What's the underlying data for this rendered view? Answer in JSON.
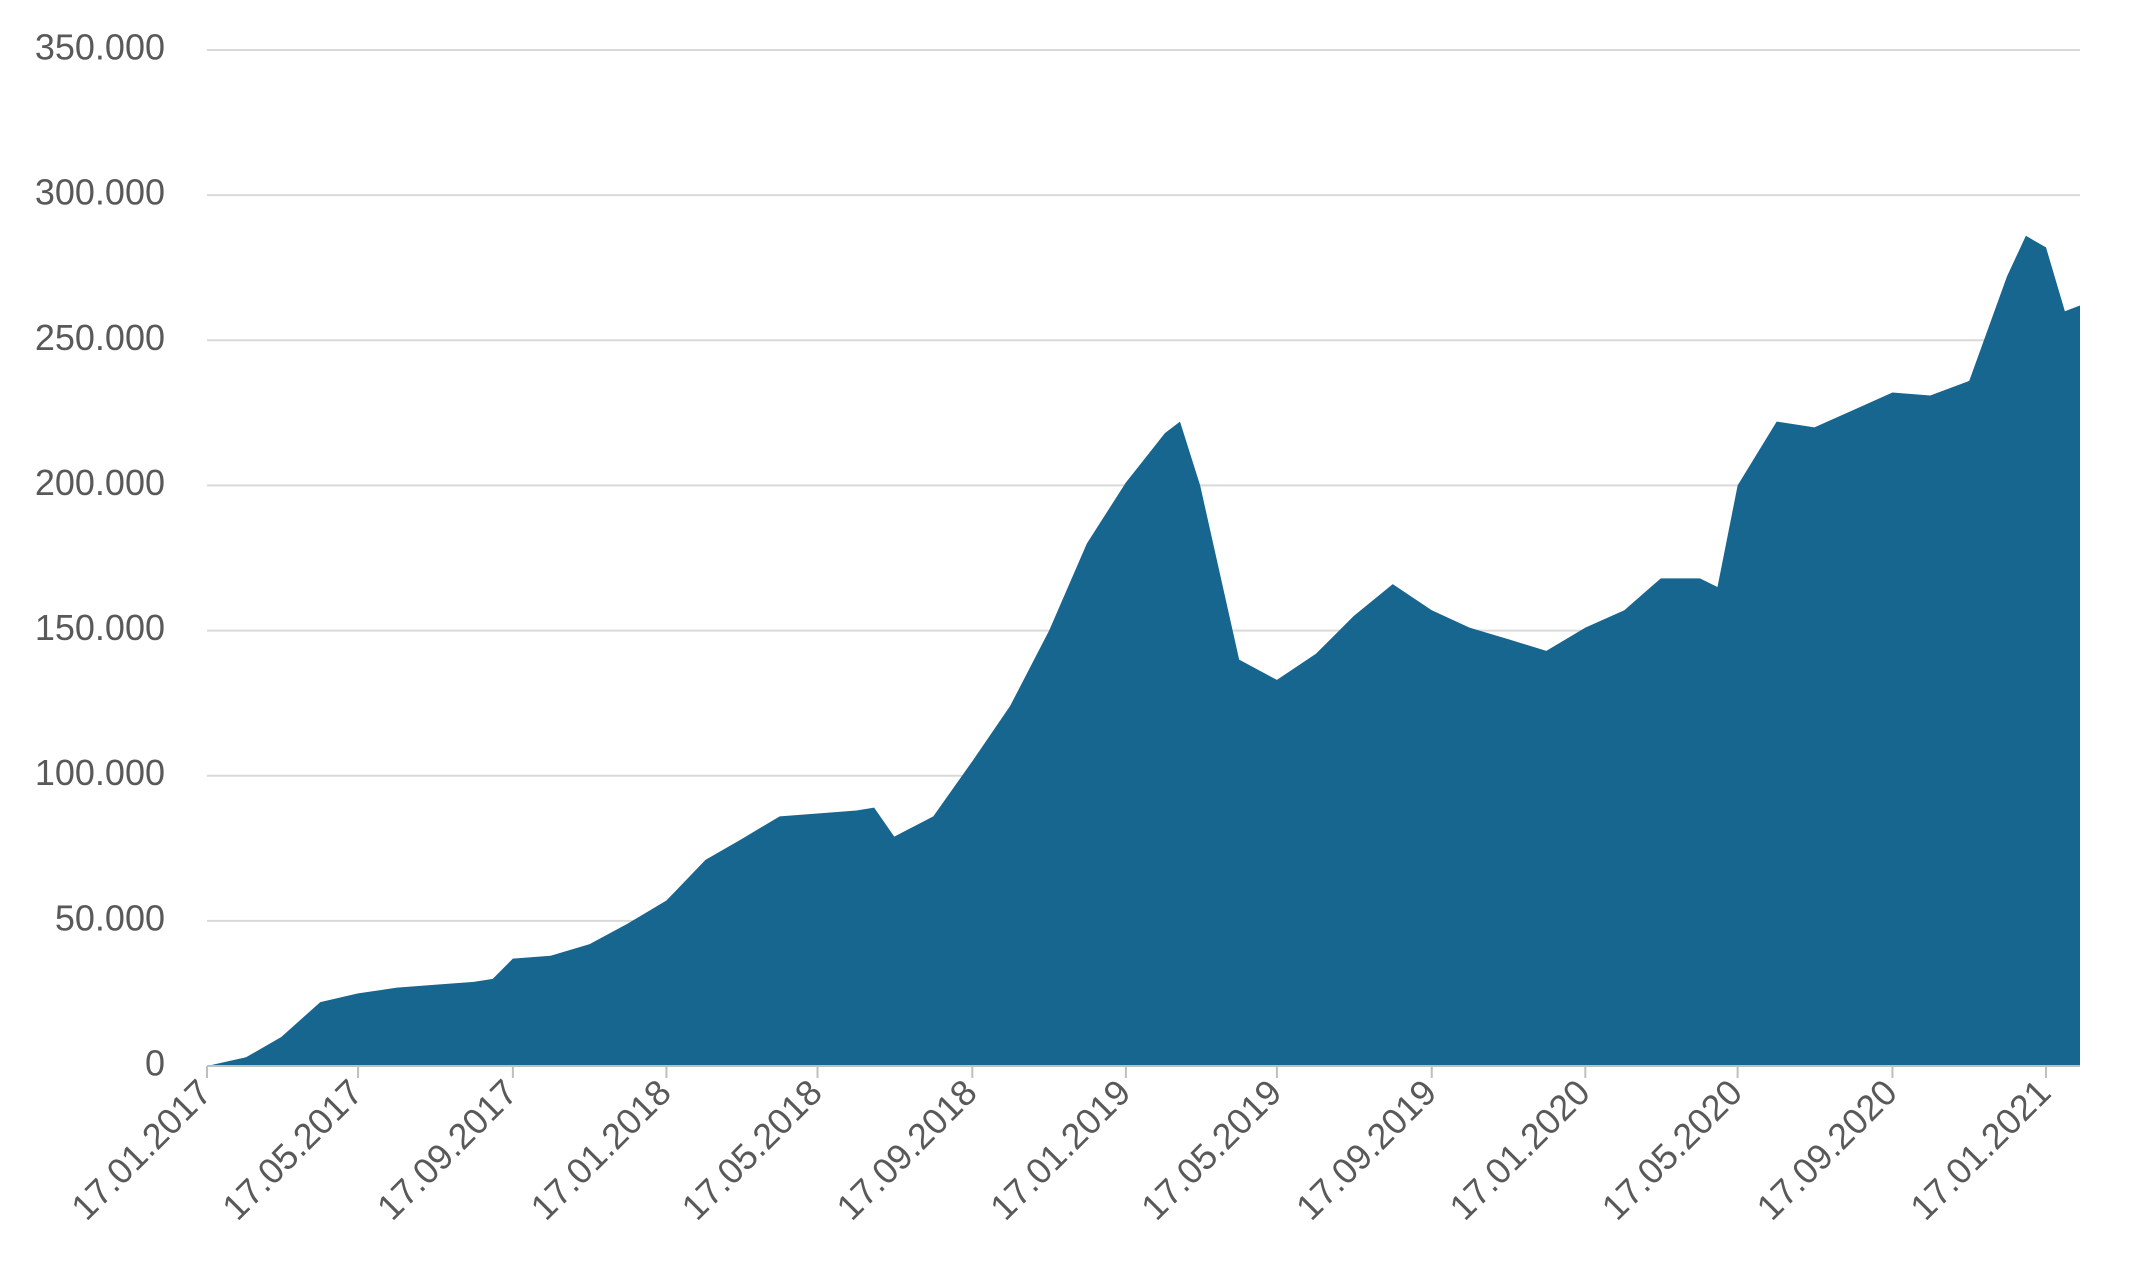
{
  "chart_data": {
    "type": "area",
    "x": [
      "17.01.2017",
      "17.02.2017",
      "17.03.2017",
      "17.04.2017",
      "17.05.2017",
      "17.06.2017",
      "17.07.2017",
      "17.08.2017",
      "01.09.2017",
      "17.09.2017",
      "17.10.2017",
      "17.11.2017",
      "17.12.2017",
      "17.01.2018",
      "17.02.2018",
      "17.03.2018",
      "17.04.2018",
      "17.05.2018",
      "17.06.2018",
      "01.07.2018",
      "17.07.2018",
      "17.08.2018",
      "17.09.2018",
      "17.10.2018",
      "17.11.2018",
      "17.12.2018",
      "17.01.2019",
      "17.02.2019",
      "01.03.2019",
      "17.03.2019",
      "17.04.2019",
      "17.05.2019",
      "17.06.2019",
      "17.07.2019",
      "17.08.2019",
      "17.09.2019",
      "17.10.2019",
      "17.11.2019",
      "17.12.2019",
      "17.01.2020",
      "17.02.2020",
      "17.03.2020",
      "17.04.2020",
      "01.05.2020",
      "17.05.2020",
      "17.06.2020",
      "17.07.2020",
      "17.08.2020",
      "17.09.2020",
      "17.10.2020",
      "17.11.2020",
      "17.12.2020",
      "01.01.2021",
      "17.01.2021",
      "01.02.2021",
      "13.02.2021"
    ],
    "values": [
      0,
      3000,
      10000,
      22000,
      25000,
      27000,
      28000,
      29000,
      30000,
      37000,
      38000,
      42000,
      49000,
      57000,
      71000,
      78000,
      86000,
      87000,
      88000,
      89000,
      79000,
      86000,
      105000,
      124000,
      150000,
      180000,
      201000,
      218000,
      222000,
      200000,
      140000,
      133000,
      142000,
      155000,
      166000,
      157000,
      151000,
      147000,
      143000,
      151000,
      157000,
      168000,
      168000,
      165000,
      200000,
      222000,
      220000,
      226000,
      232000,
      231000,
      236000,
      272000,
      286000,
      282000,
      260000,
      262000
    ],
    "color": "#17668f",
    "xlim": [
      "17.01.2017",
      "13.02.2021"
    ],
    "xticks": [
      "17.01.2017",
      "17.05.2017",
      "17.09.2017",
      "17.01.2018",
      "17.05.2018",
      "17.09.2018",
      "17.01.2019",
      "17.05.2019",
      "17.09.2019",
      "17.01.2020",
      "17.05.2020",
      "17.09.2020",
      "17.01.2021"
    ],
    "ylim": [
      0,
      350000
    ],
    "yticks": [
      0,
      {
        "value": 50000,
        "label": "50.000"
      },
      {
        "value": 100000,
        "label": "100.000"
      },
      {
        "value": 150000,
        "label": "150.000"
      },
      {
        "value": 200000,
        "label": "200.000"
      },
      {
        "value": 250000,
        "label": "250.000"
      },
      {
        "value": 300000,
        "label": "300.000"
      },
      {
        "value": 350000,
        "label": "350.000"
      }
    ],
    "grid": true
  }
}
